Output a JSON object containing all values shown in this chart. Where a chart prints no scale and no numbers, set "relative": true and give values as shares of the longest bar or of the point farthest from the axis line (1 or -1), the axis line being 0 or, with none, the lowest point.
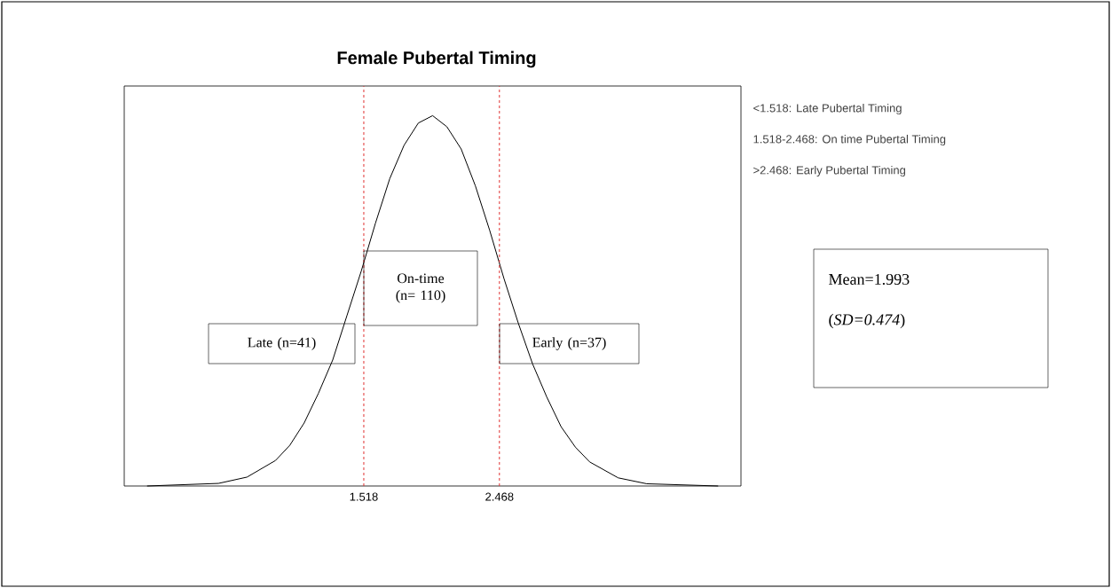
{
  "chart_data": {
    "type": "line",
    "title": "Female Pubertal Timing",
    "relative": true,
    "x": [
      0.0,
      0.5,
      0.7,
      0.9,
      1.0,
      1.1,
      1.2,
      1.3,
      1.4,
      1.5,
      1.6,
      1.7,
      1.8,
      1.9,
      2.0,
      2.1,
      2.2,
      2.3,
      2.4,
      2.5,
      2.6,
      2.7,
      2.8,
      2.9,
      3.0,
      3.1,
      3.3,
      3.5,
      4.0
    ],
    "series": [
      {
        "color": "#000000",
        "values": [
          0.0,
          0.007,
          0.024,
          0.069,
          0.11,
          0.17,
          0.25,
          0.34,
          0.46,
          0.58,
          0.71,
          0.83,
          0.92,
          0.98,
          1.0,
          0.97,
          0.91,
          0.81,
          0.69,
          0.56,
          0.44,
          0.33,
          0.24,
          0.16,
          0.105,
          0.065,
          0.022,
          0.006,
          0.0
        ]
      }
    ],
    "xlim": [
      -0.16,
      4.16
    ],
    "xticks": [
      1.518,
      2.468
    ],
    "tick_labels": "x",
    "grid": false,
    "marker": "none",
    "line_style": "solid",
    "ref_lines": [
      {
        "axis": "x",
        "value": 1.518,
        "color": "#e03030",
        "line_style": "dashed"
      },
      {
        "axis": "x",
        "value": 2.468,
        "color": "#e03030",
        "line_style": "dashed"
      }
    ],
    "annotations": [
      "Late (n=41)",
      "On-time (n= 110)",
      "Early (n=37)",
      "<1.518: Late Pubertal Timing",
      "1.518-2.468: On time Pubertal Timing",
      ">2.468: Early Pubertal Timing",
      "Mean=1.993",
      "(*SD=0.474*)"
    ]
  }
}
